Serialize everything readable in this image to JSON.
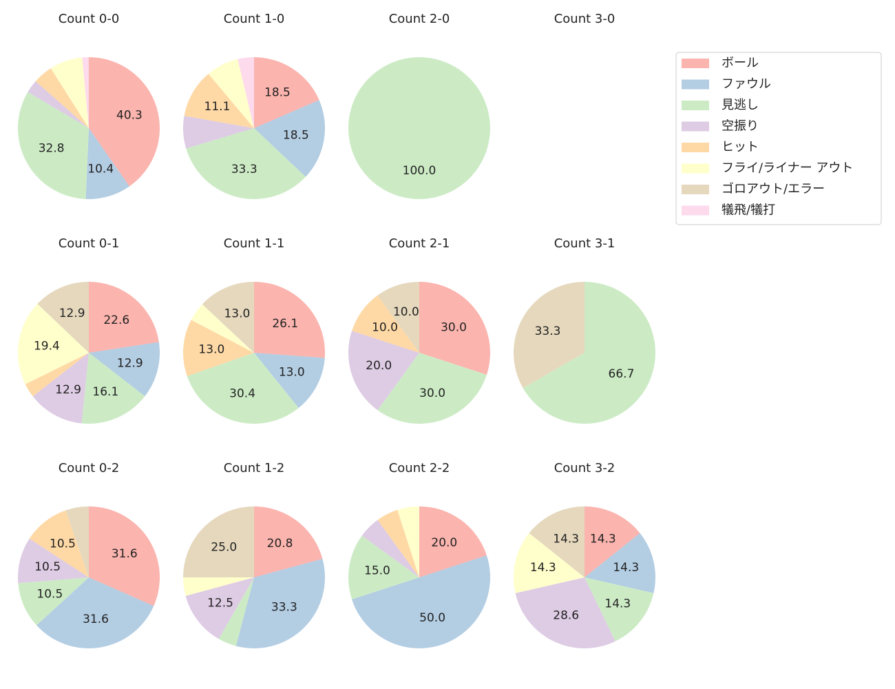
{
  "chart_data": {
    "type": "pie",
    "categories": [
      "ボール",
      "ファウル",
      "見逃し",
      "空振り",
      "ヒット",
      "フライ/ライナー アウト",
      "ゴロアウト/エラー",
      "犠飛/犠打"
    ],
    "colors": [
      "#fbb4ae",
      "#b3cde3",
      "#ccebc5",
      "#decbe4",
      "#fed9a6",
      "#ffffcc",
      "#e5d8bd",
      "#fddaec"
    ],
    "legend": "upper right",
    "charts": [
      {
        "title": "Count 0-0",
        "values": [
          40.3,
          10.4,
          32.8,
          3.0,
          4.5,
          7.5,
          0,
          1.5
        ],
        "value_labels": [
          "40.3",
          "10.4",
          "32.8",
          null,
          null,
          null,
          null,
          null
        ]
      },
      {
        "title": "Count 1-0",
        "values": [
          18.5,
          18.5,
          33.3,
          7.4,
          11.1,
          7.4,
          0,
          3.7
        ],
        "value_labels": [
          "18.5",
          "18.5",
          "33.3",
          null,
          "11.1",
          null,
          null,
          null
        ]
      },
      {
        "title": "Count 2-0",
        "values": [
          0,
          0,
          100,
          0,
          0,
          0,
          0,
          0
        ],
        "value_labels": [
          null,
          null,
          "100.0",
          null,
          null,
          null,
          null,
          null
        ]
      },
      {
        "title": "Count 3-0",
        "values": [],
        "value_labels": []
      },
      {
        "title": "Count 0-1",
        "values": [
          22.6,
          12.9,
          16.1,
          12.9,
          3.2,
          19.4,
          12.9,
          0
        ],
        "value_labels": [
          "22.6",
          "12.9",
          "16.1",
          "12.9",
          null,
          "19.4",
          "12.9",
          null
        ]
      },
      {
        "title": "Count 1-1",
        "values": [
          26.1,
          13.0,
          30.4,
          0,
          13.0,
          4.3,
          13.0,
          0
        ],
        "value_labels": [
          "26.1",
          "13.0",
          "30.4",
          null,
          "13.0",
          null,
          "13.0",
          null
        ]
      },
      {
        "title": "Count 2-1",
        "values": [
          30,
          0,
          30,
          20,
          10,
          0,
          10,
          0
        ],
        "value_labels": [
          "30.0",
          null,
          "30.0",
          "20.0",
          "10.0",
          null,
          "10.0",
          null
        ]
      },
      {
        "title": "Count 3-1",
        "values": [
          0,
          0,
          66.7,
          0,
          0,
          0,
          33.3,
          0
        ],
        "value_labels": [
          null,
          null,
          "66.7",
          null,
          null,
          null,
          "33.3",
          null
        ]
      },
      {
        "title": "Count 0-2",
        "values": [
          31.6,
          31.6,
          10.5,
          10.5,
          10.5,
          0,
          5.3,
          0
        ],
        "value_labels": [
          "31.6",
          "31.6",
          "10.5",
          "10.5",
          "10.5",
          null,
          null,
          null
        ]
      },
      {
        "title": "Count 1-2",
        "values": [
          20.8,
          33.3,
          4.2,
          12.5,
          0,
          4.2,
          25.0,
          0
        ],
        "value_labels": [
          "20.8",
          "33.3",
          null,
          "12.5",
          null,
          null,
          "25.0",
          null
        ]
      },
      {
        "title": "Count 2-2",
        "values": [
          20,
          50,
          15,
          5,
          5,
          5,
          0,
          0
        ],
        "value_labels": [
          "20.0",
          "50.0",
          "15.0",
          null,
          null,
          null,
          null,
          null
        ]
      },
      {
        "title": "Count 3-2",
        "values": [
          14.3,
          14.3,
          14.3,
          28.6,
          0,
          14.3,
          14.3,
          0
        ],
        "value_labels": [
          "14.3",
          "14.3",
          "14.3",
          "28.6",
          null,
          "14.3",
          "14.3",
          null
        ]
      }
    ]
  }
}
